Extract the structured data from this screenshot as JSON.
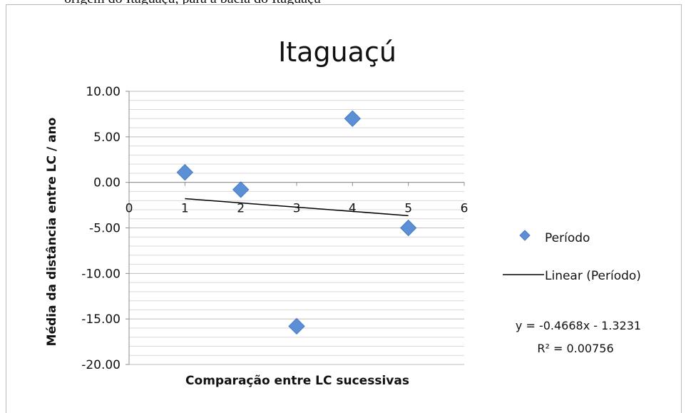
{
  "page": {
    "top_text": "origem do Itaguaçu, para a bacia do Itaguaçu"
  },
  "chart_data": {
    "type": "scatter",
    "title": "Itaguaçú",
    "xlabel": "Comparação entre LC sucessivas",
    "ylabel": "Média da distância entre LC / ano",
    "xlim": [
      0,
      6
    ],
    "ylim": [
      -20,
      10
    ],
    "x_ticks": [
      0,
      1,
      2,
      3,
      4,
      5,
      6
    ],
    "y_ticks": [
      "10.00",
      "5.00",
      "0.00",
      "-5.00",
      "-10.00",
      "-15.00",
      "-20.00"
    ],
    "y_tick_values": [
      10,
      5,
      0,
      -5,
      -10,
      -15,
      -20
    ],
    "grid": "horizontal minor gridlines",
    "legend_position": "right",
    "series": [
      {
        "name": "Período",
        "marker": "diamond",
        "color": "#5b8fd6",
        "x": [
          1,
          2,
          3,
          4,
          5
        ],
        "y": [
          1.1,
          -0.8,
          -15.8,
          7.0,
          -5.0
        ]
      }
    ],
    "trendline": {
      "name": "Linear (Período)",
      "type": "linear",
      "slope": -0.4668,
      "intercept": -1.3231,
      "x_range": [
        1,
        5
      ],
      "color": "#000000",
      "equation": "y = -0.4668x - 1.3231",
      "r_squared": "R² = 0.00756"
    }
  }
}
